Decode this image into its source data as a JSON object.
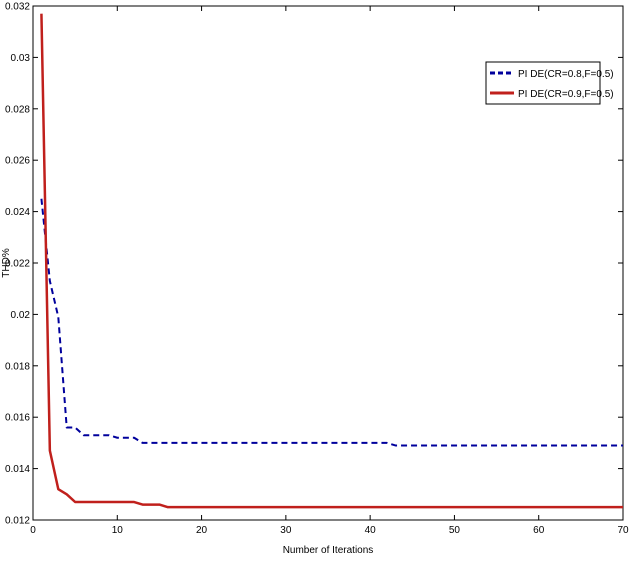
{
  "chart_data": {
    "type": "line",
    "xlabel": "Number of Iterations",
    "ylabel": "THD%",
    "xlim": [
      0,
      70
    ],
    "ylim": [
      0.012,
      0.032
    ],
    "xticks": [
      0,
      10,
      20,
      30,
      40,
      50,
      60,
      70
    ],
    "yticks": [
      0.012,
      0.014,
      0.016,
      0.018,
      0.02,
      0.022,
      0.024,
      0.026,
      0.028,
      0.03,
      0.032
    ],
    "yticks_labels": [
      "0.012",
      "0.014",
      "0.016",
      "0.018",
      "0.02",
      "0.022",
      "0.024",
      "0.026",
      "0.028",
      "0.03",
      "0.032"
    ],
    "grid": false,
    "legend_position": "top-right",
    "series": [
      {
        "name": "PI DE(CR=0.8,F=0.5)",
        "color": "#00009c",
        "style": "dashed",
        "x": [
          1,
          2,
          3,
          4,
          5,
          6,
          7,
          8,
          9,
          10,
          11,
          12,
          13,
          14,
          15,
          20,
          25,
          30,
          35,
          40,
          42,
          43,
          45,
          50,
          55,
          60,
          65,
          70
        ],
        "y": [
          0.0245,
          0.0213,
          0.0199,
          0.0156,
          0.0156,
          0.0153,
          0.0153,
          0.0153,
          0.0153,
          0.0152,
          0.0152,
          0.0152,
          0.015,
          0.015,
          0.015,
          0.015,
          0.015,
          0.015,
          0.015,
          0.015,
          0.015,
          0.0149,
          0.0149,
          0.0149,
          0.0149,
          0.0149,
          0.0149,
          0.0149
        ]
      },
      {
        "name": "PI DE(CR=0.9,F=0.5)",
        "color": "#c0201c",
        "style": "solid",
        "x": [
          1,
          2,
          3,
          4,
          5,
          6,
          7,
          8,
          9,
          10,
          11,
          12,
          13,
          14,
          15,
          16,
          20,
          25,
          30,
          40,
          50,
          60,
          70
        ],
        "y": [
          0.0317,
          0.0147,
          0.0132,
          0.013,
          0.0127,
          0.0127,
          0.0127,
          0.0127,
          0.0127,
          0.0127,
          0.0127,
          0.0127,
          0.0126,
          0.0126,
          0.0126,
          0.0125,
          0.0125,
          0.0125,
          0.0125,
          0.0125,
          0.0125,
          0.0125,
          0.0125
        ]
      }
    ]
  }
}
